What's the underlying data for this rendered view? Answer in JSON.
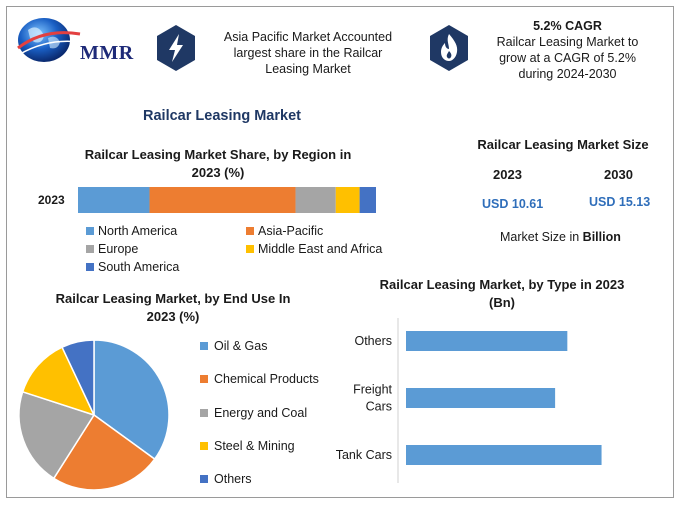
{
  "brand": {
    "logo_text": "MMR"
  },
  "highlights": [
    {
      "icon": "lightning-icon",
      "title": "",
      "lines": [
        "Asia Pacific Market Accounted",
        "largest share in the Railcar",
        "Leasing Market"
      ]
    },
    {
      "icon": "flame-icon",
      "title": "5.2% CAGR",
      "lines": [
        "Railcar Leasing Market to",
        "grow at a CAGR of 5.2%",
        "during 2024-2030"
      ]
    }
  ],
  "main_title": "Railcar Leasing Market",
  "market_size": {
    "title": "Railcar Leasing Market Size",
    "years": [
      "2023",
      "2030"
    ],
    "values": [
      "USD 10.61",
      "USD 15.13"
    ],
    "note": "Market Size in Billion",
    "note_prefix": "Market Size in ",
    "note_unit": "Billion"
  },
  "colors": {
    "blue": "#5b9bd5",
    "orange": "#ed7d31",
    "gray": "#a5a5a5",
    "yellow": "#ffc000",
    "navy": "#4472c4",
    "icon_circle": "#1f3864",
    "frame": "#9a9a9a"
  },
  "chart_data": [
    {
      "type": "bar",
      "orientation": "horizontal",
      "stacked": true,
      "title_lines": [
        "Railcar Leasing Market Share, by Region in",
        "2023 (%)"
      ],
      "categories": [
        "2023"
      ],
      "series": [
        {
          "name": "North America",
          "values": [
            24
          ],
          "color": "#5b9bd5"
        },
        {
          "name": "Asia-Pacific",
          "values": [
            49
          ],
          "color": "#ed7d31"
        },
        {
          "name": "Europe",
          "values": [
            13.5
          ],
          "color": "#a5a5a5"
        },
        {
          "name": "Middle East and Africa",
          "values": [
            8
          ],
          "color": "#ffc000"
        },
        {
          "name": "South America",
          "values": [
            5.5
          ],
          "color": "#4472c4"
        }
      ],
      "xlim": [
        0,
        100
      ],
      "legend": "bottom"
    },
    {
      "type": "pie",
      "title_lines": [
        "Railcar Leasing Market, by End Use In",
        "2023 (%)"
      ],
      "categories": [
        "Oil & Gas",
        "Chemical Products",
        "Energy and Coal",
        "Steel & Mining",
        "Others"
      ],
      "values": [
        35,
        24,
        21,
        13,
        7
      ],
      "colors": [
        "#5b9bd5",
        "#ed7d31",
        "#a5a5a5",
        "#ffc000",
        "#4472c4"
      ],
      "legend": "right"
    },
    {
      "type": "bar",
      "orientation": "horizontal",
      "title_lines": [
        "Railcar Leasing Market, by Type in 2023",
        "(Bn)"
      ],
      "categories": [
        [
          "Others"
        ],
        [
          "Freight",
          "Cars"
        ],
        [
          "Tank Cars"
        ]
      ],
      "values": [
        3.3,
        3.05,
        4.0
      ],
      "xlim": [
        0,
        4.5
      ],
      "color": "#5b9bd5",
      "grid": false
    }
  ]
}
